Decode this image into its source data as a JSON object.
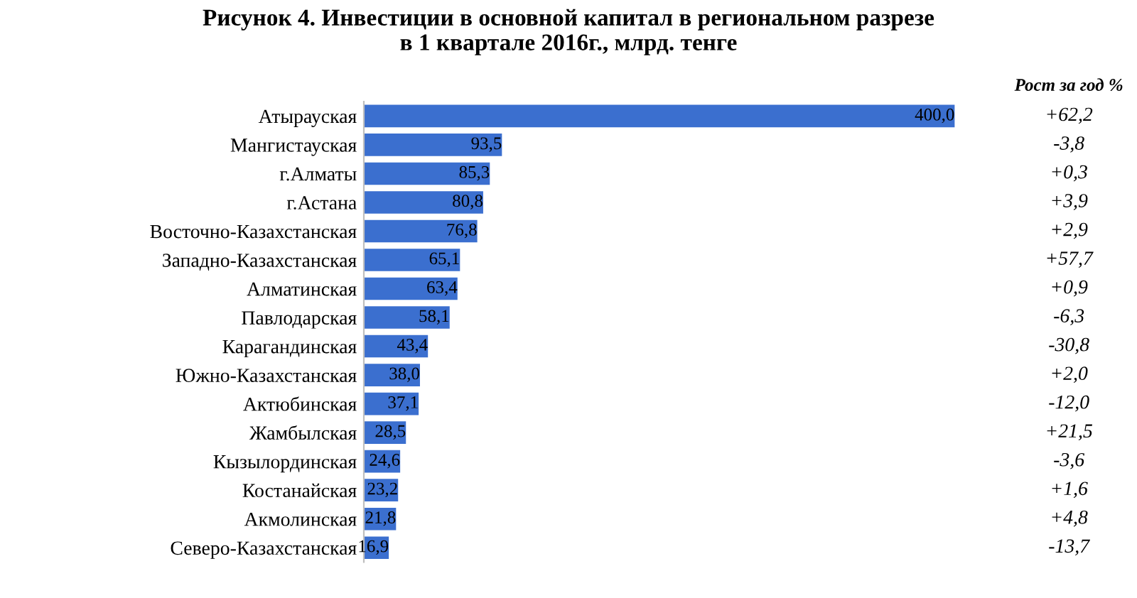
{
  "chart_data": {
    "type": "bar",
    "orientation": "horizontal",
    "title": "Рисунок 4. Инвестиции в основной капитал в региональном разрезе\nв 1 квартале 2016г., млрд. тенге",
    "categories": [
      "Атырауская",
      "Мангистауская",
      "г.Алматы",
      "г.Астана",
      "Восточно-Казахстанская",
      "Западно-Казахстанская",
      "Алматинская",
      "Павлодарская",
      "Карагандинская",
      "Южно-Казахстанская",
      "Актюбинская",
      "Жамбылская",
      "Кызылординская",
      "Костанайская",
      "Акмолинская",
      "Северо-Казахстанская"
    ],
    "values": [
      400.0,
      93.5,
      85.3,
      80.8,
      76.8,
      65.1,
      63.4,
      58.1,
      43.4,
      38.0,
      37.1,
      28.5,
      24.6,
      23.2,
      21.8,
      16.9
    ],
    "value_labels": [
      "400,0",
      "93,5",
      "85,3",
      "80,8",
      "76,8",
      "65,1",
      "63,4",
      "58,1",
      "43,4",
      "38,0",
      "37,1",
      "28,5",
      "24,6",
      "23,2",
      "21,8",
      "16,9"
    ],
    "color": "#3b6fcf",
    "tick_labels": "y",
    "grid": false,
    "legend": false,
    "annotations": [
      "Рост за год %",
      "+62,2",
      "-3,8",
      "+0,3",
      "+3,9",
      "+2,9",
      "+57,7",
      "+0,9",
      "-6,3",
      "-30,8",
      "+2,0",
      "-12,0",
      "+21,5",
      "-3,6",
      "+1,6",
      "+4,8",
      "-13,7"
    ]
  }
}
